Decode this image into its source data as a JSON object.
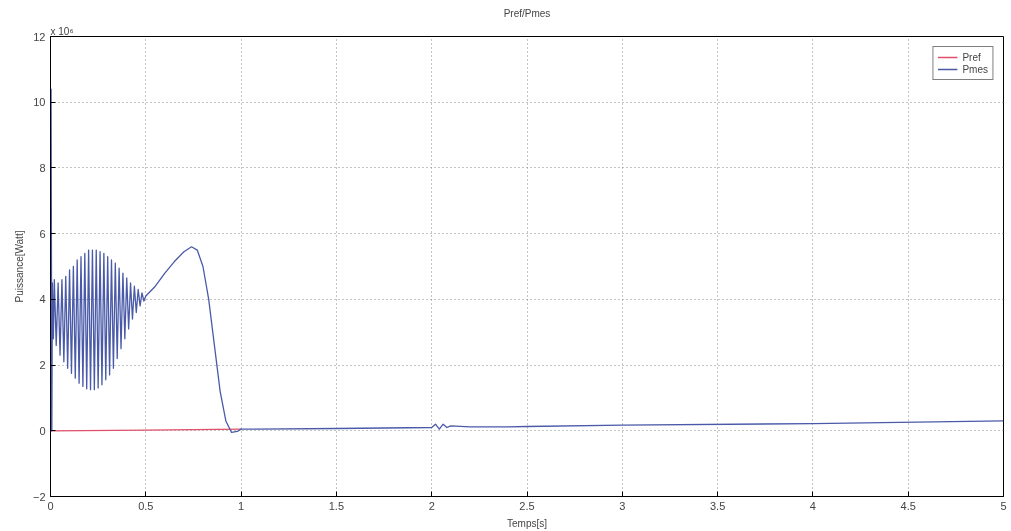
{
  "chart_data": {
    "type": "line",
    "title": "Pref/Pmes",
    "xlabel": "Temps[s]",
    "ylabel": "Puissance[Watt]",
    "annotations": [
      "x 10⁶"
    ],
    "xlim": [
      0,
      5
    ],
    "xticks": [
      0,
      0.5,
      1,
      1.5,
      2,
      2.5,
      3,
      3.5,
      4,
      4.5,
      5
    ],
    "ylim": [
      -2,
      12
    ],
    "yticks": [
      -2,
      0,
      2,
      4,
      6,
      8,
      10,
      12
    ],
    "grid": true,
    "legend": "top right",
    "line_style": "solid",
    "marker": "none",
    "series": [
      {
        "name": "Pref",
        "color": "#e0506a",
        "x": [
          0,
          0.5,
          1.0
        ],
        "values": [
          0,
          0.02,
          0.05
        ]
      },
      {
        "name": "Pmes",
        "color": "#4a5aa8",
        "x": [
          0,
          0.003,
          0.007,
          0.01,
          0.015,
          0.02,
          0.03,
          0.04,
          0.05,
          0.06,
          0.07,
          0.08,
          0.09,
          0.1,
          0.11,
          0.12,
          0.13,
          0.14,
          0.15,
          0.16,
          0.17,
          0.18,
          0.19,
          0.2,
          0.21,
          0.22,
          0.23,
          0.24,
          0.25,
          0.26,
          0.27,
          0.28,
          0.29,
          0.3,
          0.31,
          0.32,
          0.33,
          0.34,
          0.35,
          0.36,
          0.37,
          0.38,
          0.39,
          0.4,
          0.41,
          0.42,
          0.43,
          0.44,
          0.45,
          0.46,
          0.47,
          0.48,
          0.49,
          0.5,
          0.55,
          0.6,
          0.65,
          0.7,
          0.74,
          0.77,
          0.8,
          0.83,
          0.86,
          0.89,
          0.92,
          0.95,
          0.98,
          1.0,
          1.5,
          2.0,
          2.02,
          2.04,
          2.06,
          2.08,
          2.1,
          2.2,
          2.4,
          2.5,
          3.0,
          4.0,
          5.0
        ],
        "values": [
          0,
          10.4,
          0,
          4.5,
          2.8,
          4.6,
          2.6,
          4.5,
          2.3,
          4.6,
          2.1,
          4.7,
          1.9,
          4.9,
          1.75,
          5.0,
          1.6,
          5.2,
          1.45,
          5.3,
          1.35,
          5.4,
          1.28,
          5.5,
          1.25,
          5.5,
          1.25,
          5.5,
          1.3,
          5.45,
          1.4,
          5.4,
          1.55,
          5.3,
          1.7,
          5.2,
          1.9,
          5.1,
          2.2,
          4.95,
          2.5,
          4.8,
          2.8,
          4.65,
          3.1,
          4.5,
          3.4,
          4.4,
          3.6,
          4.3,
          3.8,
          4.2,
          3.95,
          4.1,
          4.4,
          4.8,
          5.15,
          5.45,
          5.6,
          5.5,
          5.0,
          4.0,
          2.6,
          1.2,
          0.3,
          -0.05,
          -0.02,
          0.05,
          0.07,
          0.1,
          0.2,
          0.05,
          0.2,
          0.1,
          0.15,
          0.12,
          0.12,
          0.13,
          0.17,
          0.22,
          0.3
        ]
      }
    ]
  }
}
